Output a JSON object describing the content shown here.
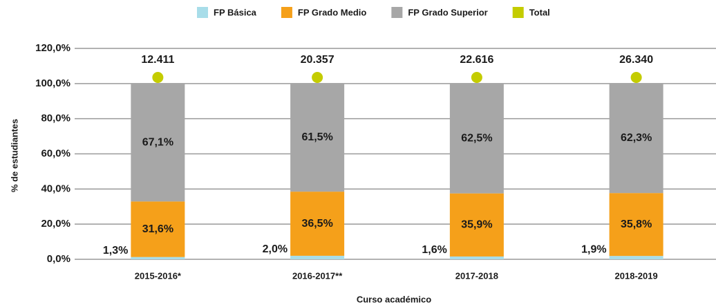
{
  "chart_data": {
    "type": "bar",
    "stacked": true,
    "categories": [
      "2015-2016*",
      "2016-2017**",
      "2017-2018",
      "2018-2019"
    ],
    "series": [
      {
        "name": "FP Básica",
        "color": "#a8dde9",
        "values": [
          1.3,
          2.0,
          1.6,
          1.9
        ],
        "value_labels": [
          "1,3%",
          "2,0%",
          "1,6%",
          "1,9%"
        ]
      },
      {
        "name": "FP Grado Medio",
        "color": "#f5a01a",
        "values": [
          31.6,
          36.5,
          35.9,
          35.8
        ],
        "value_labels": [
          "31,6%",
          "36,5%",
          "35,9%",
          "35,8%"
        ]
      },
      {
        "name": "FP Grado Superior",
        "color": "#a7a7a7",
        "values": [
          67.1,
          61.5,
          62.5,
          62.3
        ],
        "value_labels": [
          "67,1%",
          "61,5%",
          "62,5%",
          "62,3%"
        ]
      },
      {
        "name": "Total",
        "color": "#c4cc00",
        "type": "scatter",
        "values": [
          12411,
          20357,
          22616,
          26340
        ],
        "value_labels": [
          "12.411",
          "20.357",
          "22.616",
          "26.340"
        ]
      }
    ],
    "ylabel": "% de estudiantes",
    "xlabel": "Curso académico",
    "ylim": [
      0,
      120
    ],
    "yticks": [
      {
        "value": 0,
        "label": "0,0%"
      },
      {
        "value": 20,
        "label": "20,0%"
      },
      {
        "value": 40,
        "label": "40,0%"
      },
      {
        "value": 60,
        "label": "60,0%"
      },
      {
        "value": 80,
        "label": "80,0%"
      },
      {
        "value": 100,
        "label": "100,0%"
      },
      {
        "value": 120,
        "label": "120,0%"
      }
    ],
    "grid": true,
    "legend": "top"
  }
}
